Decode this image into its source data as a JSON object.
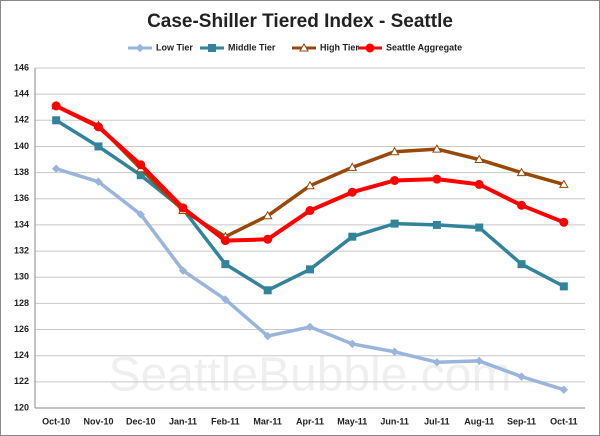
{
  "chart_data": {
    "type": "line",
    "title": "Case-Shiller Tiered Index - Seattle",
    "watermark": "SeattleBubble.com",
    "categories": [
      "Oct-10",
      "Nov-10",
      "Dec-10",
      "Jan-11",
      "Feb-11",
      "Mar-11",
      "Apr-11",
      "May-11",
      "Jun-11",
      "Jul-11",
      "Aug-11",
      "Sep-11",
      "Oct-11"
    ],
    "series": [
      {
        "name": "Low Tier",
        "color": "#9ab5dc",
        "marker": "diamond",
        "values": [
          138.3,
          137.3,
          134.8,
          130.5,
          128.3,
          125.5,
          126.2,
          124.9,
          124.3,
          123.5,
          123.6,
          122.4,
          121.4
        ]
      },
      {
        "name": "Middle Tier",
        "color": "#31849b",
        "marker": "square",
        "values": [
          142,
          140,
          137.8,
          135.2,
          131,
          129,
          130.6,
          133.1,
          134.1,
          134,
          133.8,
          131,
          129.3
        ]
      },
      {
        "name": "High Tier",
        "color": "#984807",
        "marker": "triangle",
        "values": [
          143.1,
          141.6,
          138.3,
          135.1,
          133.1,
          134.7,
          137,
          138.4,
          139.6,
          139.8,
          139,
          138,
          137.1
        ]
      },
      {
        "name": "Seattle Aggregate",
        "color": "#ff0000",
        "marker": "circle",
        "values": [
          143.1,
          141.5,
          138.6,
          135.3,
          132.8,
          132.9,
          135.1,
          136.5,
          137.4,
          137.5,
          137.1,
          135.5,
          134.2
        ]
      }
    ],
    "ylim": [
      120,
      146
    ],
    "yticks": [
      120,
      122,
      124,
      126,
      128,
      130,
      132,
      134,
      136,
      138,
      140,
      142,
      144,
      146
    ],
    "grid": true,
    "legend": "top"
  }
}
